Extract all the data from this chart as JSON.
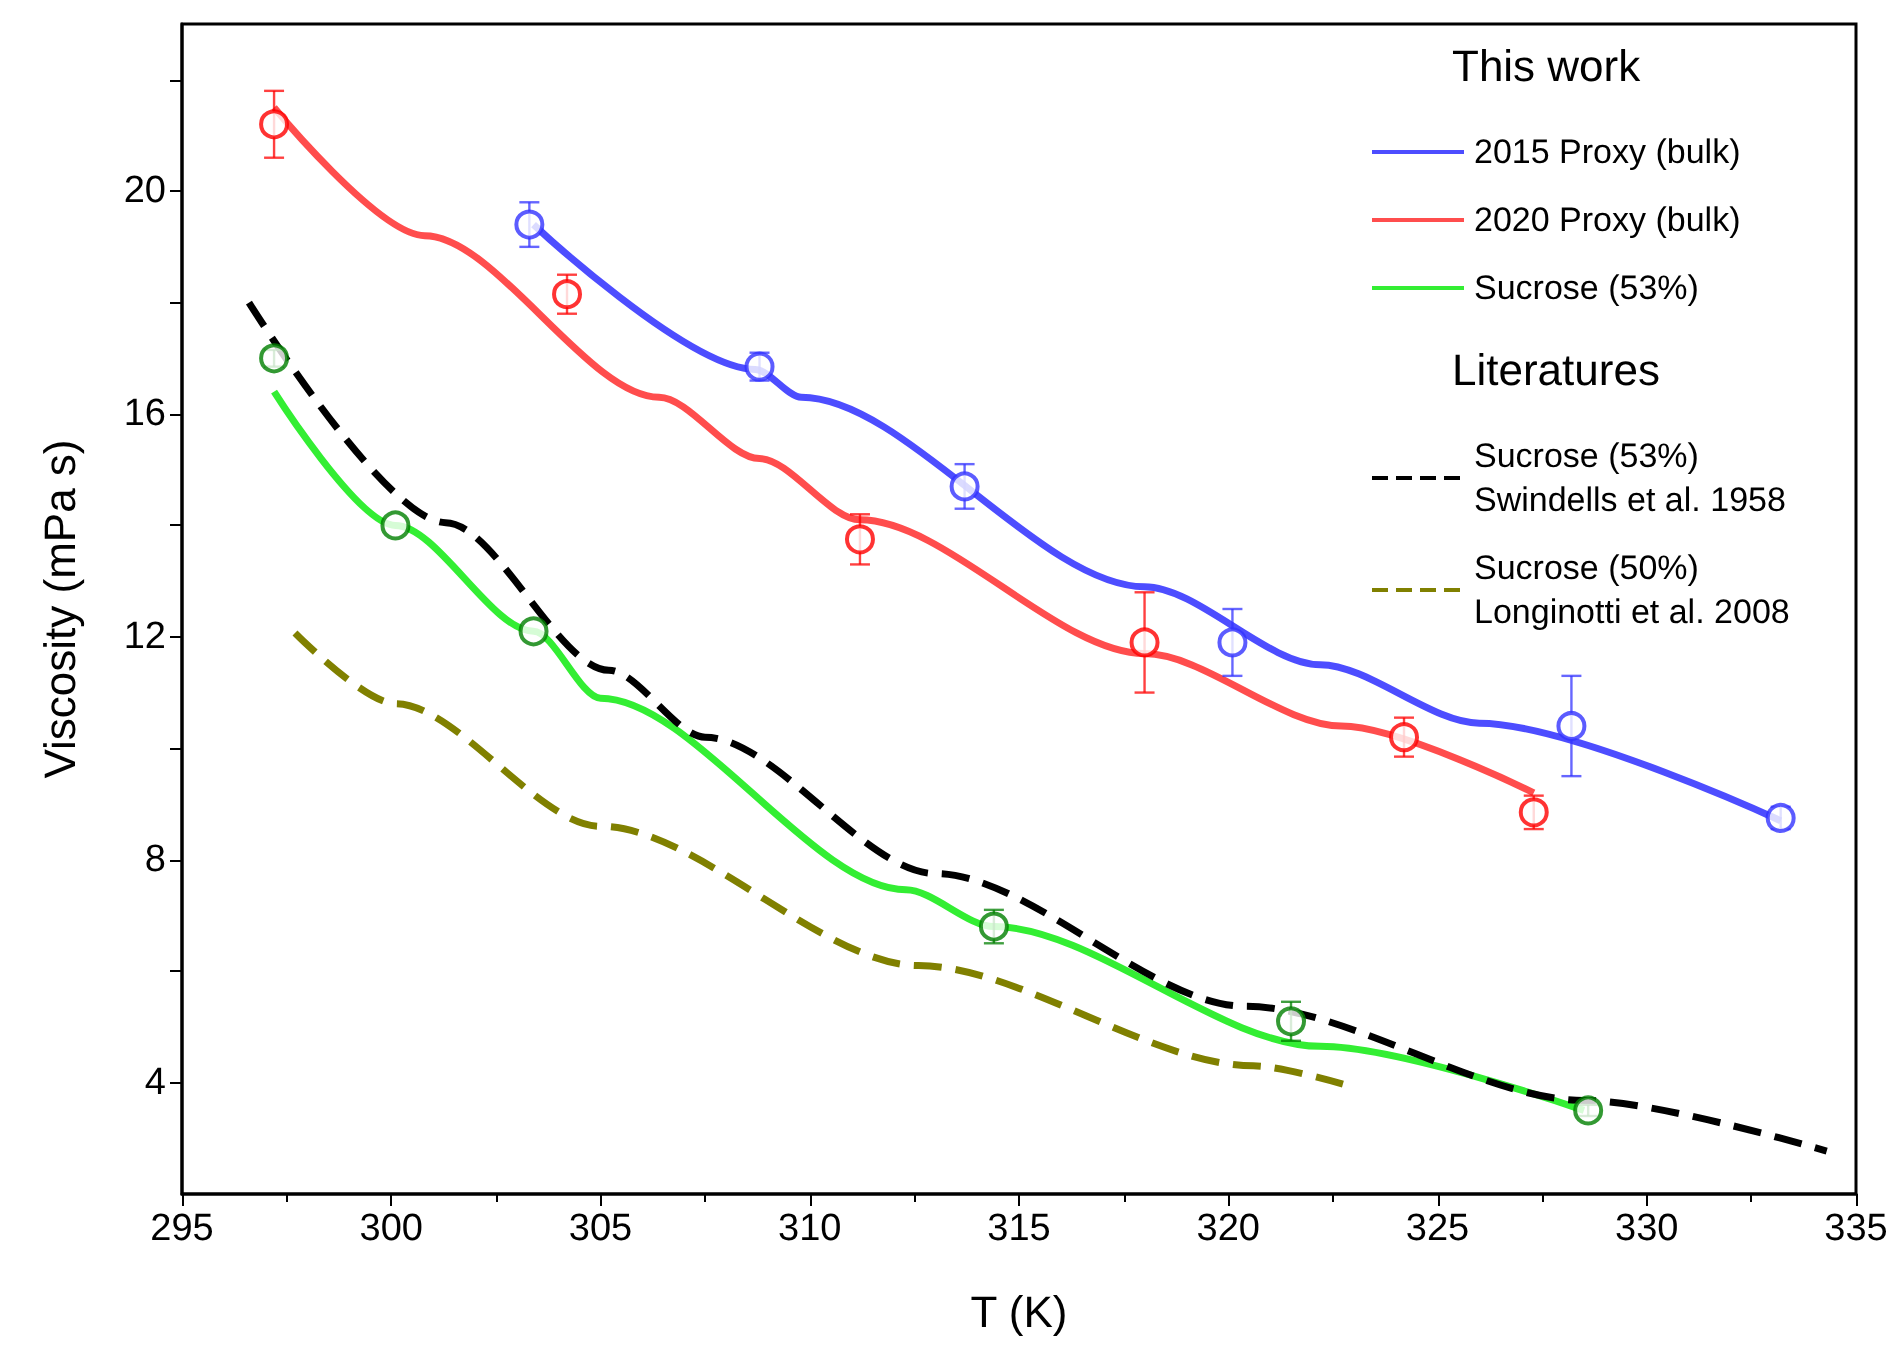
{
  "chart_data": {
    "type": "line",
    "xlabel": "T (K)",
    "ylabel": "Viscosity (mPa s)",
    "xlim": [
      295,
      335
    ],
    "xticks": [
      295,
      300,
      305,
      310,
      315,
      320,
      325,
      330,
      335
    ],
    "ylim": [
      2,
      23
    ],
    "yticks": [
      {
        "value": 6,
        "label": null
      },
      4,
      8,
      12,
      16,
      20,
      {
        "value": 10,
        "label": null
      },
      {
        "value": 14,
        "label": null
      },
      {
        "value": 18,
        "label": null
      },
      {
        "value": 22,
        "label": null
      }
    ],
    "grid": false,
    "legend": "top right",
    "annotations": [
      "This work",
      "Literatures"
    ],
    "series": [
      {
        "name": "2015 Proxy (bulk)",
        "type": "line",
        "line_style": "solid",
        "marker": "none",
        "color": "#4d4dff",
        "x": [
          303.4,
          308.7,
          309.8,
          318.0,
          322.2,
          326.0,
          333.2
        ],
        "values": [
          19.4,
          16.8,
          16.3,
          12.9,
          11.5,
          10.45,
          8.7
        ]
      },
      {
        "name": "2020 Proxy (bulk)",
        "type": "line",
        "line_style": "solid",
        "marker": "none",
        "color": "#ff4d4d",
        "x": [
          297.2,
          300.8,
          306.4,
          308.8,
          311.2,
          318.0,
          322.7,
          327.3
        ],
        "values": [
          21.5,
          19.2,
          16.3,
          15.2,
          14.1,
          11.7,
          10.4,
          9.2
        ]
      },
      {
        "name": "Sucrose (53%)",
        "type": "line",
        "line_style": "solid",
        "marker": "none",
        "color": "#33ee33",
        "x": [
          297.2,
          300.1,
          303.4,
          305.0,
          312.3,
          314.4,
          322.2,
          328.5
        ],
        "values": [
          16.4,
          14.0,
          12.1,
          10.9,
          7.46,
          6.8,
          4.65,
          3.5
        ]
      },
      {
        "name": "Sucrose (53%)\nSwindells et al. 1958",
        "type": "line",
        "line_style": "dashed",
        "marker": "none",
        "color": "#000000",
        "x": [
          296.6,
          301.3,
          305.2,
          307.5,
          313.0,
          320.4,
          328.5,
          334.3
        ],
        "values": [
          18.0,
          14.05,
          11.4,
          10.2,
          7.75,
          5.37,
          3.68,
          2.77
        ]
      },
      {
        "name": "Sucrose (50%)\nLonginotti et al. 2008",
        "type": "line",
        "line_style": "dashed",
        "marker": "none",
        "color": "#808000",
        "x": [
          297.7,
          300.1,
          305.0,
          312.6,
          320.6,
          322.8
        ],
        "values": [
          12.07,
          10.8,
          8.6,
          6.1,
          4.3,
          3.96
        ]
      },
      {
        "type": "scatter",
        "marker": "circle",
        "color": "#3333ff",
        "x": [
          303.3,
          308.8,
          313.7,
          320.1,
          328.2,
          333.2
        ],
        "values": [
          19.4,
          16.85,
          14.7,
          11.9,
          10.4,
          8.75
        ],
        "errors": [
          0.4,
          0.25,
          0.4,
          0.6,
          0.9,
          0.2
        ]
      },
      {
        "type": "scatter",
        "marker": "circle",
        "color": "#ff0000",
        "x": [
          297.2,
          304.2,
          311.2,
          318.0,
          324.2,
          327.3
        ],
        "values": [
          21.2,
          18.15,
          13.75,
          11.9,
          10.2,
          8.85
        ],
        "errors": [
          0.6,
          0.35,
          0.45,
          0.9,
          0.35,
          0.3
        ]
      },
      {
        "type": "scatter",
        "marker": "circle",
        "color": "#007f00",
        "x": [
          297.2,
          300.1,
          303.4,
          314.4,
          321.5,
          328.6
        ],
        "values": [
          17.0,
          14.0,
          12.1,
          6.8,
          5.1,
          3.5
        ],
        "errors": [
          0.15,
          null,
          null,
          0.3,
          0.35,
          0.1
        ]
      }
    ]
  }
}
